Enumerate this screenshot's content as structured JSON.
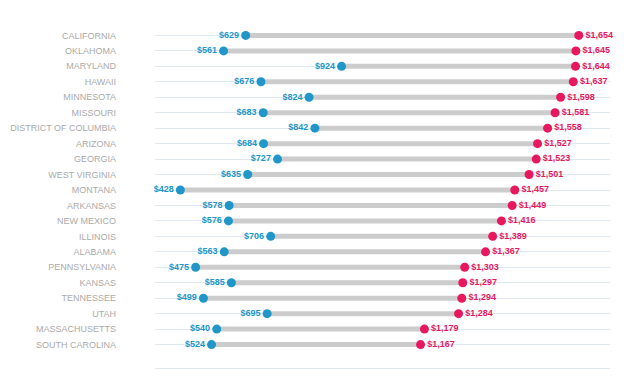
{
  "chart_data": {
    "type": "dumbbell",
    "categories": [
      "CALIFORNIA",
      "OKLAHOMA",
      "MARYLAND",
      "HAWAII",
      "MINNESOTA",
      "MISSOURI",
      "DISTRICT OF COLUMBIA",
      "ARIZONA",
      "GEORGIA",
      "WEST VIRGINIA",
      "MONTANA",
      "ARKANSAS",
      "NEW MEXICO",
      "ILLINOIS",
      "ALABAMA",
      "PENNSYLVANIA",
      "KANSAS",
      "TENNESSEE",
      "UTAH",
      "MASSACHUSETTS",
      "SOUTH CAROLINA"
    ],
    "series": [
      {
        "color": "#2196c9",
        "values": [
          629,
          561,
          924,
          676,
          824,
          683,
          842,
          684,
          727,
          635,
          428,
          578,
          576,
          706,
          563,
          475,
          585,
          499,
          695,
          540,
          524
        ],
        "value_labels": [
          "$629",
          "$561",
          "$924",
          "$676",
          "$824",
          "$683",
          "$842",
          "$684",
          "$727",
          "$635",
          "$428",
          "$578",
          "$576",
          "$706",
          "$563",
          "$475",
          "$585",
          "$499",
          "$695",
          "$540",
          "$524"
        ]
      },
      {
        "color": "#e8185e",
        "values": [
          1654,
          1645,
          1644,
          1637,
          1598,
          1581,
          1558,
          1527,
          1523,
          1501,
          1457,
          1449,
          1416,
          1389,
          1367,
          1303,
          1297,
          1294,
          1284,
          1179,
          1167
        ],
        "value_labels": [
          "$1,654",
          "$1,645",
          "$1,644",
          "$1,637",
          "$1,598",
          "$1,581",
          "$1,558",
          "$1,527",
          "$1,523",
          "$1,501",
          "$1,457",
          "$1,449",
          "$1,416",
          "$1,389",
          "$1,367",
          "$1,303",
          "$1,297",
          "$1,294",
          "$1,284",
          "$1,179",
          "$1,167"
        ]
      }
    ],
    "color": "#cccccc",
    "xlim": [
      350,
      1750
    ],
    "grid": true,
    "data_labels": true,
    "tick_labels": "y"
  }
}
